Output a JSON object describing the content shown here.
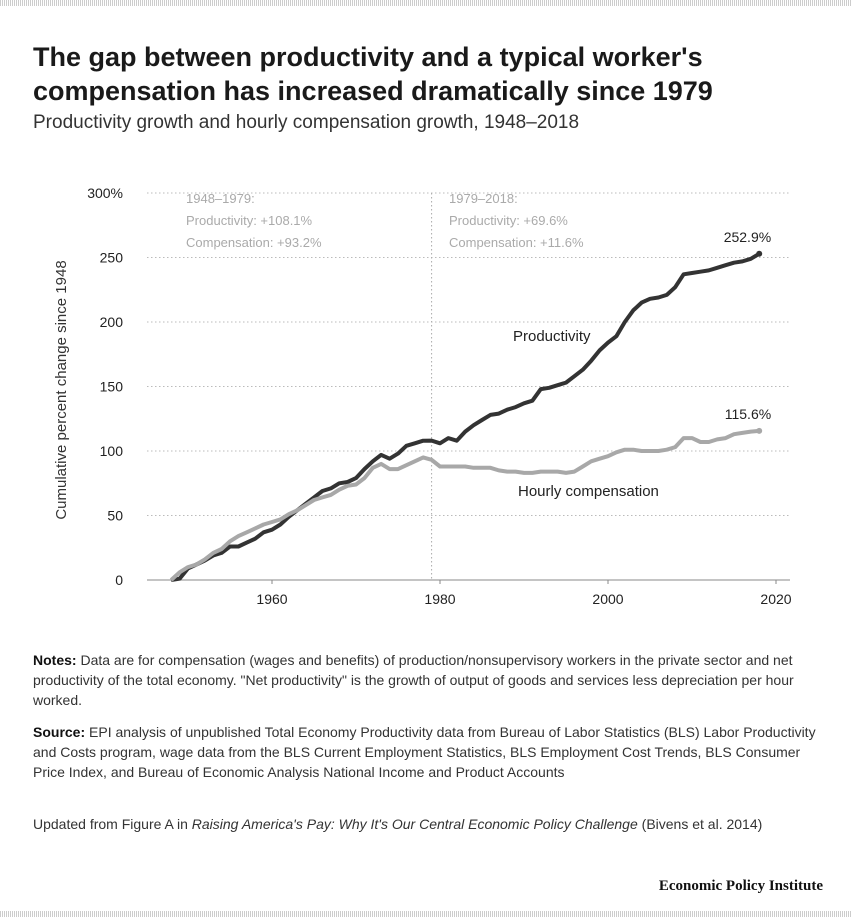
{
  "title": "The gap between productivity and a typical worker's compensation has increased dramatically since 1979",
  "subtitle": "Productivity growth and hourly compensation growth, 1948–2018",
  "chart_data": {
    "type": "line",
    "ylabel": "Cumulative percent change since 1948",
    "ylim": [
      0,
      300
    ],
    "xlim": [
      1945,
      2021
    ],
    "yticks": [
      0,
      50,
      100,
      150,
      200,
      250,
      300
    ],
    "ytick_labels": [
      "0",
      "50",
      "100",
      "150",
      "200",
      "250",
      "300%"
    ],
    "xticks": [
      1960,
      1980,
      2000,
      2020
    ],
    "xtick_labels": [
      "1960",
      "1980",
      "2000",
      "2020"
    ],
    "grid": "horizontal dotted",
    "divider_year": 1979,
    "annotations": {
      "period1": {
        "heading": "1948–1979:",
        "productivity": "Productivity: +108.1%",
        "compensation": "Compensation: +93.2%"
      },
      "period2": {
        "heading": "1979–2018:",
        "productivity": "Productivity: +69.6%",
        "compensation": "Compensation: +11.6%"
      }
    },
    "x": [
      1948,
      1949,
      1950,
      1951,
      1952,
      1953,
      1954,
      1955,
      1956,
      1957,
      1958,
      1959,
      1960,
      1961,
      1962,
      1963,
      1964,
      1965,
      1966,
      1967,
      1968,
      1969,
      1970,
      1971,
      1972,
      1973,
      1974,
      1975,
      1976,
      1977,
      1978,
      1979,
      1980,
      1981,
      1982,
      1983,
      1984,
      1985,
      1986,
      1987,
      1988,
      1989,
      1990,
      1991,
      1992,
      1993,
      1994,
      1995,
      1996,
      1997,
      1998,
      1999,
      2000,
      2001,
      2002,
      2003,
      2004,
      2005,
      2006,
      2007,
      2008,
      2009,
      2010,
      2011,
      2012,
      2013,
      2014,
      2015,
      2016,
      2017,
      2018
    ],
    "series": [
      {
        "name": "Productivity",
        "color": "#333333",
        "end_label": "252.9%",
        "values": [
          0,
          1,
          9,
          12,
          15,
          19,
          21,
          26,
          26,
          29,
          32,
          37,
          39,
          43,
          49,
          54,
          59,
          64,
          69,
          71,
          75,
          76,
          79,
          86,
          92,
          97,
          94,
          98,
          104,
          106,
          108,
          108.1,
          106,
          110,
          108,
          115,
          120,
          124,
          128,
          129,
          132,
          134,
          137,
          139,
          148,
          149,
          151,
          153,
          158,
          163,
          170,
          178,
          184,
          189,
          200,
          209,
          215,
          218,
          219,
          221,
          227,
          237,
          238,
          239,
          240,
          242,
          244,
          246,
          247,
          249,
          252.9
        ]
      },
      {
        "name": "Hourly compensation",
        "color": "#a8a8a8",
        "end_label": "115.6%",
        "values": [
          0,
          6,
          10,
          12,
          16,
          21,
          24,
          30,
          34,
          37,
          40,
          43,
          45,
          47,
          51,
          54,
          58,
          62,
          64,
          66,
          70,
          73,
          74,
          79,
          87,
          90,
          86,
          86,
          89,
          92,
          95,
          93.2,
          88,
          88,
          88,
          88,
          87,
          87,
          87,
          85,
          84,
          84,
          83,
          83,
          84,
          84,
          84,
          83,
          84,
          88,
          92,
          94,
          96,
          99,
          101,
          101,
          100,
          100,
          100,
          101,
          103,
          110,
          110,
          107,
          107,
          109,
          110,
          113,
          114,
          115,
          115.6
        ]
      }
    ]
  },
  "notes": {
    "notes_label": "Notes:",
    "notes_text": " Data are for compensation (wages and benefits) of production/nonsupervisory workers in the private sector and net productivity of the total economy. \"Net productivity\" is the growth of output of goods and services less depreciation per hour worked.",
    "source_label": "Source:",
    "source_text": " EPI analysis of unpublished Total Economy Productivity data from Bureau of Labor Statistics (BLS) Labor Productivity and Costs program, wage data from the BLS Current Employment Statistics, BLS Employment Cost Trends, BLS Consumer Price Index, and Bureau of Economic Analysis National Income and Product Accounts",
    "updated_prefix": "Updated from Figure A in ",
    "updated_title": "Raising America's Pay: Why It's Our Central Economic Policy Challenge",
    "updated_suffix": " (Bivens et al. 2014)"
  },
  "brand": "Economic Policy Institute"
}
